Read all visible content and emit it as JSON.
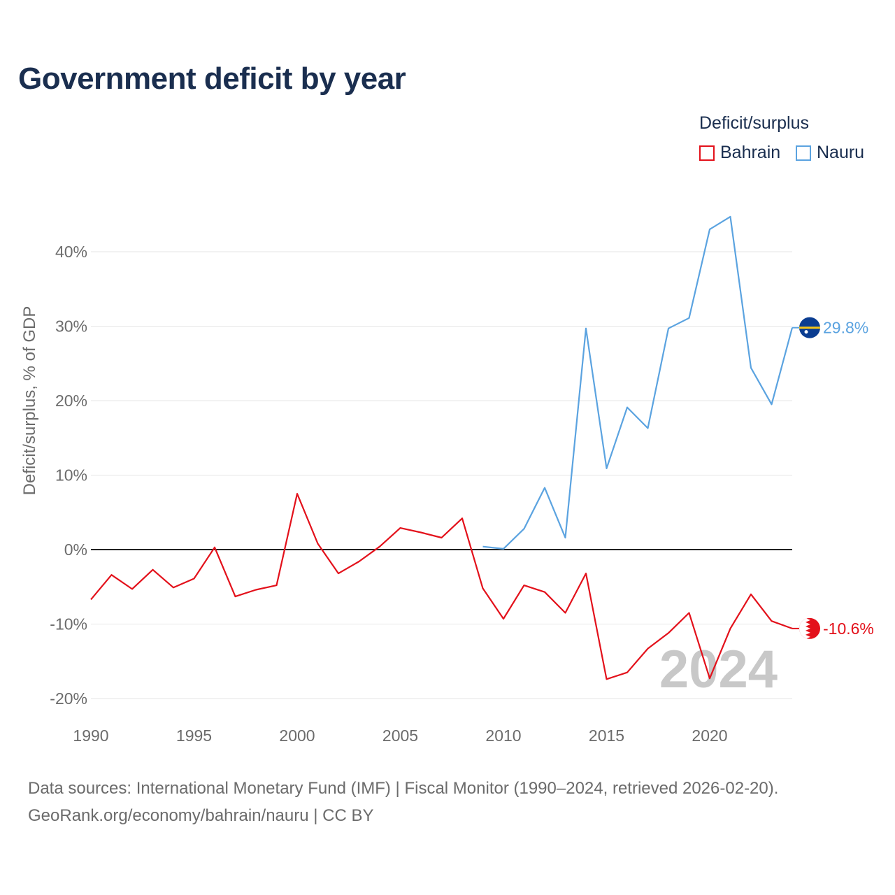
{
  "chart_data": {
    "type": "line",
    "title": "Government deficit by year",
    "legend_title": "Deficit/surplus",
    "ylabel": "Deficit/surplus, % of GDP",
    "xlabel": "",
    "ylim": [
      -20,
      40
    ],
    "xlim": [
      1990,
      2024
    ],
    "y_ticks": [
      -20,
      -10,
      0,
      10,
      20,
      30,
      40
    ],
    "y_tick_labels": [
      "-20%",
      "-10%",
      "0%",
      "10%",
      "20%",
      "30%",
      "40%"
    ],
    "x_ticks": [
      1990,
      1995,
      2000,
      2005,
      2010,
      2015,
      2020
    ],
    "x_tick_labels": [
      "1990",
      "1995",
      "2000",
      "2005",
      "2010",
      "2015",
      "2020"
    ],
    "year_watermark": "2024",
    "series": [
      {
        "name": "Bahrain",
        "color": "#e3111b",
        "end_label": "-10.6%",
        "flag": "bahrain-flag",
        "x": [
          1990,
          1991,
          1992,
          1993,
          1994,
          1995,
          1996,
          1997,
          1998,
          1999,
          2000,
          2001,
          2002,
          2003,
          2004,
          2005,
          2006,
          2007,
          2008,
          2009,
          2010,
          2011,
          2012,
          2013,
          2014,
          2015,
          2016,
          2017,
          2018,
          2019,
          2020,
          2021,
          2022,
          2023,
          2024
        ],
        "values": [
          -6.7,
          -3.4,
          -5.3,
          -2.7,
          -5.1,
          -3.9,
          0.3,
          -6.3,
          -5.4,
          -4.8,
          7.5,
          0.8,
          -3.2,
          -1.6,
          0.4,
          2.9,
          2.3,
          1.6,
          4.2,
          -5.2,
          -9.3,
          -4.8,
          -5.7,
          -8.5,
          -3.2,
          -17.4,
          -16.5,
          -13.3,
          -11.2,
          -8.5,
          -17.3,
          -10.6,
          -6.0,
          -9.6,
          -10.6
        ]
      },
      {
        "name": "Nauru",
        "color": "#5ba3e0",
        "end_label": "29.8%",
        "flag": "nauru-flag",
        "x": [
          2009,
          2010,
          2011,
          2012,
          2013,
          2014,
          2015,
          2016,
          2017,
          2018,
          2019,
          2020,
          2021,
          2022,
          2023,
          2024
        ],
        "values": [
          0.4,
          0.1,
          2.8,
          8.3,
          1.6,
          29.7,
          10.9,
          19.1,
          16.3,
          29.7,
          31.1,
          43.0,
          44.7,
          24.4,
          19.5,
          29.8
        ]
      }
    ]
  },
  "footer": {
    "source_line": "Data sources: International Monetary Fund (IMF) | Fiscal Monitor (1990–2024, retrieved 2026-02-20).",
    "credit_line": "GeoRank.org/economy/bahrain/nauru | CC BY"
  }
}
